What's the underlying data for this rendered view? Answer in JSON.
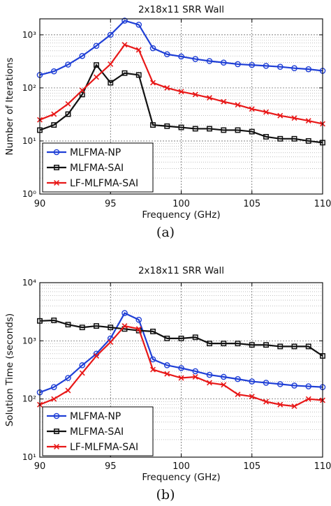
{
  "captions": [
    "(a)",
    "(b)"
  ],
  "chart_data": [
    {
      "type": "line",
      "title": "2x18x11 SRR Wall",
      "xlabel": "Frequency (GHz)",
      "ylabel": "Number of Iterations",
      "xlim": [
        90,
        110
      ],
      "ylim": [
        1,
        2000
      ],
      "yscale": "log",
      "grid": true,
      "legend": "bottom-left",
      "xticks": [
        "90",
        "95",
        "100",
        "105",
        "110"
      ],
      "yticks": [
        {
          "value": 1,
          "label": "10⁰"
        },
        {
          "value": 10,
          "label": "10¹"
        },
        {
          "value": 100,
          "label": "10²"
        },
        {
          "value": 1000,
          "label": "10³"
        }
      ],
      "x": [
        90,
        91,
        92,
        93,
        94,
        95,
        96,
        97,
        98,
        99,
        100,
        101,
        102,
        103,
        104,
        105,
        106,
        107,
        108,
        109,
        110
      ],
      "series": [
        {
          "name": "MLFMA-NP",
          "color": "#1f3fd6",
          "marker": "circle",
          "values": [
            175,
            205,
            275,
            400,
            620,
            1000,
            1850,
            1550,
            560,
            430,
            390,
            350,
            320,
            300,
            280,
            270,
            260,
            250,
            235,
            225,
            210
          ]
        },
        {
          "name": "MLFMA-SAI",
          "color": "#111111",
          "marker": "square",
          "values": [
            16,
            20,
            32,
            75,
            270,
            125,
            190,
            175,
            20,
            19,
            18,
            17,
            17,
            16,
            16,
            15,
            12,
            11,
            11,
            10,
            9.3
          ]
        },
        {
          "name": "LF-MLFMA-SAI",
          "color": "#e81818",
          "marker": "x",
          "values": [
            25,
            32,
            50,
            90,
            160,
            280,
            650,
            520,
            125,
            100,
            85,
            75,
            65,
            55,
            48,
            40,
            35,
            30,
            27,
            24,
            21
          ]
        }
      ]
    },
    {
      "type": "line",
      "title": "2x18x11 SRR Wall",
      "xlabel": "Frequency (GHz)",
      "ylabel": "Solution Time (seconds)",
      "xlim": [
        90,
        110
      ],
      "ylim": [
        10,
        10000
      ],
      "yscale": "log",
      "grid": true,
      "legend": "bottom-left",
      "xticks": [
        "90",
        "95",
        "100",
        "105",
        "110"
      ],
      "yticks": [
        {
          "value": 10,
          "label": "10¹"
        },
        {
          "value": 100,
          "label": "10²"
        },
        {
          "value": 1000,
          "label": "10³"
        },
        {
          "value": 10000,
          "label": "10⁴"
        }
      ],
      "x": [
        90,
        91,
        92,
        93,
        94,
        95,
        96,
        97,
        98,
        99,
        100,
        101,
        102,
        103,
        104,
        105,
        106,
        107,
        108,
        109,
        110
      ],
      "series": [
        {
          "name": "MLFMA-NP",
          "color": "#1f3fd6",
          "marker": "circle",
          "values": [
            130,
            160,
            230,
            380,
            600,
            1100,
            3000,
            2300,
            480,
            380,
            340,
            300,
            260,
            240,
            220,
            200,
            190,
            180,
            170,
            165,
            160
          ]
        },
        {
          "name": "MLFMA-SAI",
          "color": "#111111",
          "marker": "square",
          "values": [
            2200,
            2250,
            1900,
            1700,
            1800,
            1700,
            1600,
            1500,
            1450,
            1100,
            1100,
            1150,
            900,
            900,
            900,
            850,
            850,
            800,
            800,
            800,
            550
          ]
        },
        {
          "name": "LF-MLFMA-SAI",
          "color": "#e81818",
          "marker": "x",
          "values": [
            80,
            100,
            140,
            280,
            550,
            950,
            1800,
            1600,
            320,
            270,
            230,
            240,
            190,
            175,
            120,
            110,
            90,
            80,
            75,
            100,
            95
          ]
        }
      ]
    }
  ]
}
